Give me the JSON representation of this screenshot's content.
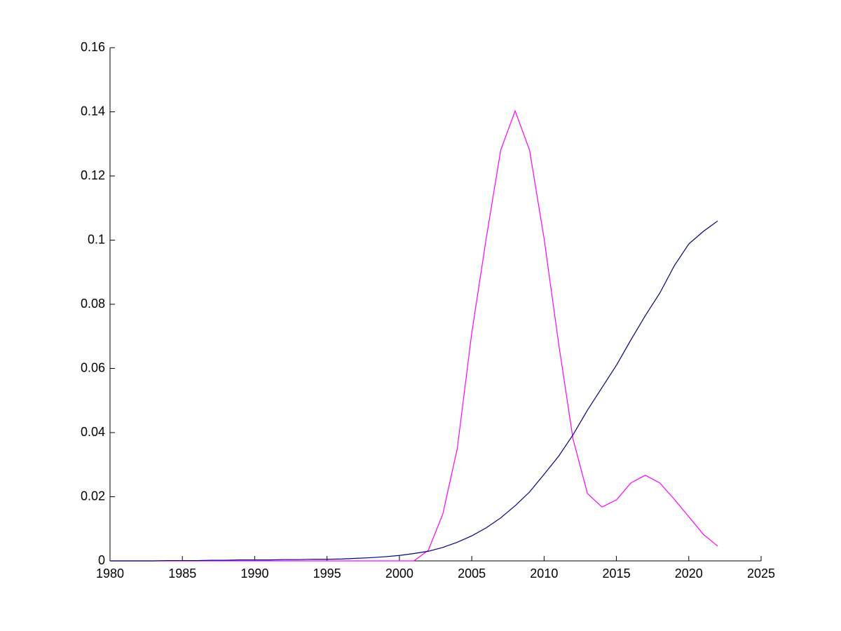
{
  "chart_data": {
    "type": "line",
    "x": [
      1980,
      1981,
      1982,
      1983,
      1984,
      1985,
      1986,
      1987,
      1988,
      1989,
      1990,
      1991,
      1992,
      1993,
      1994,
      1995,
      1996,
      1997,
      1998,
      1999,
      2000,
      2001,
      2002,
      2003,
      2004,
      2005,
      2006,
      2007,
      2008,
      2009,
      2010,
      2011,
      2012,
      2013,
      2014,
      2015,
      2016,
      2017,
      2018,
      2019,
      2020,
      2021,
      2022
    ],
    "series": [
      {
        "color": "#ff00ff",
        "values": [
          0,
          0,
          0,
          0,
          0,
          0,
          0,
          0,
          0,
          0,
          0,
          0,
          0,
          0,
          0,
          0,
          0,
          0,
          0,
          0,
          0,
          0,
          0.0033,
          0.0146,
          0.035,
          0.071,
          0.1005,
          0.128,
          0.1403,
          0.128,
          0.1005,
          0.068,
          0.038,
          0.021,
          0.0168,
          0.019,
          0.0243,
          0.0267,
          0.0243,
          0.0192,
          0.0138,
          0.0083,
          0.0046
        ]
      },
      {
        "color": "#000080",
        "values": [
          0,
          0,
          0,
          0,
          0.0001,
          0.0001,
          0.0001,
          0.0002,
          0.0002,
          0.0003,
          0.0003,
          0.0003,
          0.0004,
          0.0004,
          0.0005,
          0.0005,
          0.0006,
          0.0008,
          0.001,
          0.0013,
          0.0017,
          0.0023,
          0.003,
          0.0042,
          0.0058,
          0.0078,
          0.0103,
          0.0134,
          0.0172,
          0.0215,
          0.027,
          0.0326,
          0.0393,
          0.047,
          0.054,
          0.061,
          0.0689,
          0.0765,
          0.0835,
          0.092,
          0.0988,
          0.1027,
          0.106
        ]
      }
    ],
    "xlim": [
      1980,
      2025
    ],
    "xticks": [
      1980,
      1985,
      1990,
      1995,
      2000,
      2005,
      2010,
      2015,
      2020,
      2025
    ],
    "ylim": [
      0,
      0.16
    ],
    "yticks": [
      0,
      0.02,
      0.04,
      0.06,
      0.08,
      0.1,
      0.12,
      0.14,
      0.16
    ]
  }
}
